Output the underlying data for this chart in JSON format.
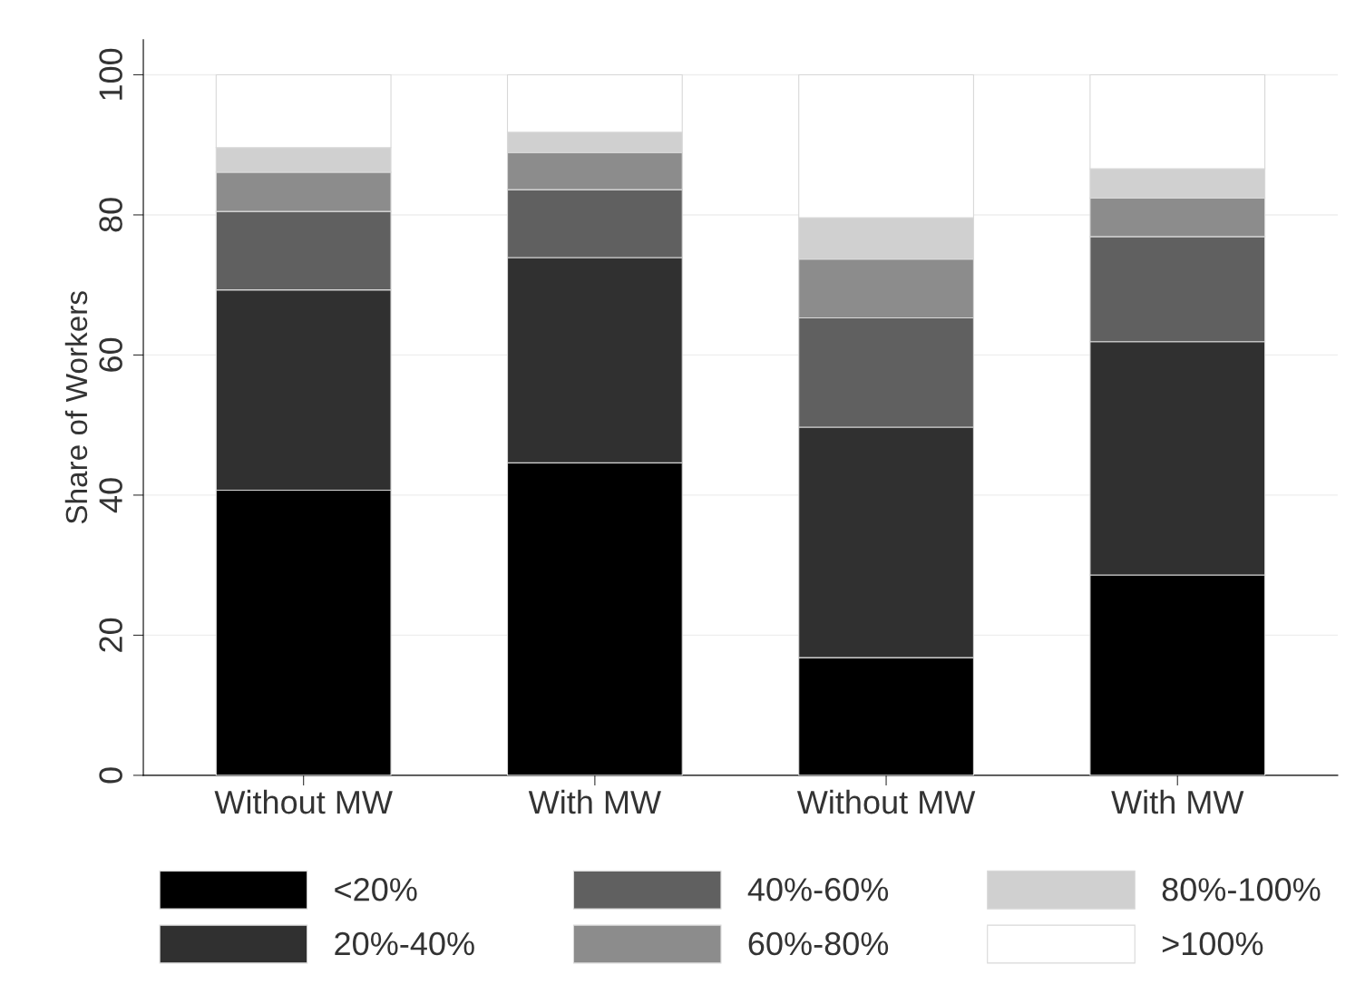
{
  "chart_data": {
    "type": "bar",
    "stacked": true,
    "ylabel": "Share of Workers",
    "categories": [
      "Without MW",
      "With MW",
      "Without MW",
      "With MW"
    ],
    "series": [
      {
        "name": "<20%",
        "color": "#000000",
        "values": [
          40.7,
          44.6,
          16.8,
          28.6
        ]
      },
      {
        "name": "20%-40%",
        "color": "#303030",
        "values": [
          28.6,
          29.3,
          32.9,
          33.3
        ]
      },
      {
        "name": "40%-60%",
        "color": "#606060",
        "values": [
          11.2,
          9.7,
          15.6,
          15.0
        ]
      },
      {
        "name": "60%-80%",
        "color": "#8c8c8c",
        "values": [
          5.6,
          5.3,
          8.4,
          5.5
        ]
      },
      {
        "name": "80%-100%",
        "color": "#d0d0d0",
        "values": [
          3.5,
          2.9,
          5.9,
          4.2
        ]
      },
      {
        "name": ">100%",
        "color": "#ffffff",
        "values": [
          10.4,
          8.2,
          20.4,
          13.4
        ]
      }
    ],
    "ylim": [
      0,
      105
    ],
    "yticks": [
      0,
      20,
      40,
      60,
      80,
      100
    ],
    "grid": "y",
    "legend": "bottom"
  }
}
